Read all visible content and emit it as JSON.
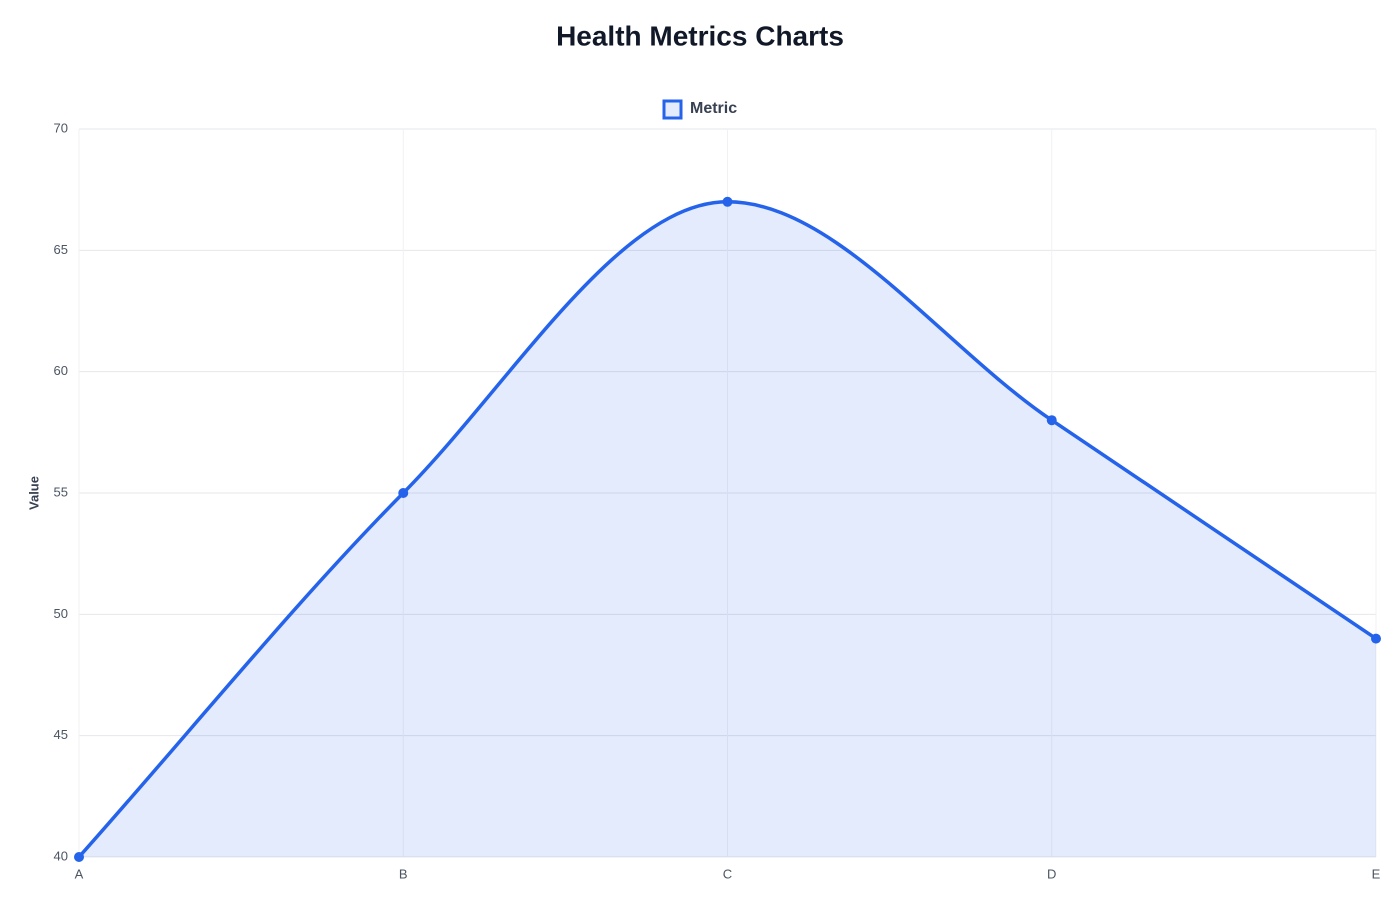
{
  "chart_data": {
    "type": "line",
    "title": "Health Metrics Charts",
    "y_label": "Value",
    "categories": [
      "A",
      "B",
      "C",
      "D",
      "E"
    ],
    "series": [
      {
        "name": "Metric",
        "color": "#2563eb",
        "values": [
          40,
          55,
          67,
          58,
          49
        ]
      }
    ],
    "ylim": [
      40,
      70
    ],
    "yticks": [
      40,
      45,
      50,
      55,
      60,
      65,
      70
    ],
    "grid": true,
    "fill": true,
    "smooth": true,
    "legend": "top"
  }
}
